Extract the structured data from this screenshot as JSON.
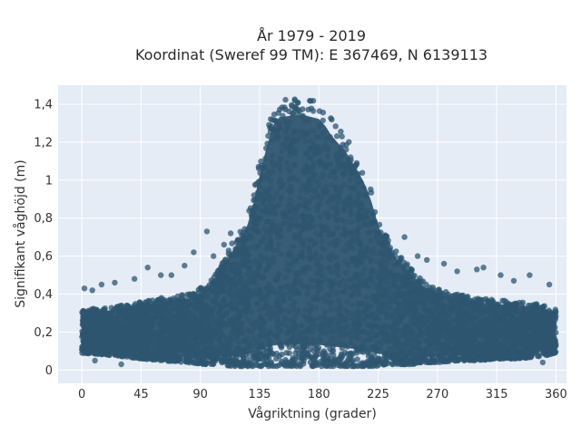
{
  "chart_data": {
    "type": "scatter",
    "title": "År 1979 - 2019",
    "subtitle": "Koordinat (Sweref 99 TM): E 367469, N 6139113",
    "xlabel": "Vågriktning (grader)",
    "ylabel": "Signifikant våghöjd (m)",
    "xlim": [
      -18,
      368
    ],
    "ylim": [
      -0.07,
      1.5
    ],
    "x_ticks": [
      0,
      45,
      90,
      135,
      180,
      225,
      270,
      315,
      360
    ],
    "x_tick_labels": [
      "0",
      "45",
      "90",
      "135",
      "180",
      "225",
      "270",
      "315",
      "360"
    ],
    "y_ticks": [
      0,
      0.2,
      0.4,
      0.6,
      0.8,
      1.0,
      1.2,
      1.4
    ],
    "y_tick_labels": [
      "0",
      "0,2",
      "0,4",
      "0,6",
      "0,8",
      "1",
      "1,2",
      "1,4"
    ],
    "grid": true,
    "marker_color": "#2e5570",
    "background_color": "#e5ecf6",
    "envelope": {
      "description_points_x": [
        0,
        20,
        45,
        60,
        80,
        95,
        105,
        115,
        125,
        130,
        135,
        140,
        145,
        150,
        160,
        170,
        180,
        185,
        190,
        200,
        210,
        215,
        220,
        225,
        230,
        240,
        250,
        260,
        270,
        285,
        300,
        315,
        330,
        345,
        355,
        360
      ],
      "upper_y": [
        0.32,
        0.33,
        0.36,
        0.38,
        0.4,
        0.45,
        0.55,
        0.68,
        0.8,
        0.93,
        1.1,
        1.25,
        1.38,
        1.43,
        1.44,
        1.44,
        1.42,
        1.38,
        1.32,
        1.24,
        1.12,
        1.05,
        0.95,
        0.82,
        0.72,
        0.62,
        0.54,
        0.47,
        0.43,
        0.4,
        0.38,
        0.37,
        0.36,
        0.35,
        0.33,
        0.32
      ],
      "lower_y": [
        0.09,
        0.08,
        0.06,
        0.05,
        0.04,
        0.03,
        0.03,
        0.02,
        0.02,
        0.02,
        0.02,
        0.02,
        0.02,
        0.02,
        0.02,
        0.02,
        0.02,
        0.02,
        0.02,
        0.02,
        0.02,
        0.02,
        0.02,
        0.02,
        0.03,
        0.03,
        0.03,
        0.04,
        0.04,
        0.05,
        0.05,
        0.06,
        0.06,
        0.07,
        0.08,
        0.09
      ]
    },
    "outliers": [
      {
        "x": 2,
        "y": 0.43
      },
      {
        "x": 8,
        "y": 0.42
      },
      {
        "x": 15,
        "y": 0.45
      },
      {
        "x": 25,
        "y": 0.46
      },
      {
        "x": 40,
        "y": 0.48
      },
      {
        "x": 50,
        "y": 0.54
      },
      {
        "x": 60,
        "y": 0.5
      },
      {
        "x": 68,
        "y": 0.5
      },
      {
        "x": 78,
        "y": 0.55
      },
      {
        "x": 85,
        "y": 0.62
      },
      {
        "x": 95,
        "y": 0.73
      },
      {
        "x": 100,
        "y": 0.6
      },
      {
        "x": 108,
        "y": 0.66
      },
      {
        "x": 113,
        "y": 0.72
      },
      {
        "x": 245,
        "y": 0.7
      },
      {
        "x": 255,
        "y": 0.6
      },
      {
        "x": 262,
        "y": 0.58
      },
      {
        "x": 275,
        "y": 0.56
      },
      {
        "x": 285,
        "y": 0.52
      },
      {
        "x": 300,
        "y": 0.53
      },
      {
        "x": 305,
        "y": 0.54
      },
      {
        "x": 318,
        "y": 0.5
      },
      {
        "x": 328,
        "y": 0.47
      },
      {
        "x": 340,
        "y": 0.5
      },
      {
        "x": 355,
        "y": 0.45
      },
      {
        "x": 10,
        "y": 0.05
      },
      {
        "x": 30,
        "y": 0.03
      },
      {
        "x": 350,
        "y": 0.04
      }
    ]
  }
}
